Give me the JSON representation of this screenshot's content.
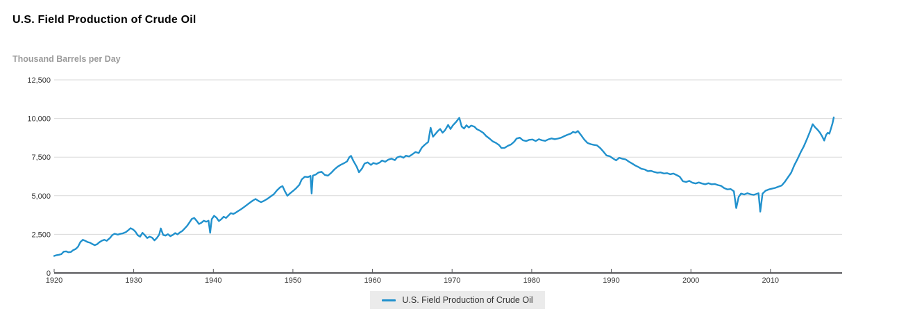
{
  "header": {
    "title": "U.S. Field Production of Crude Oil",
    "units_label": "Thousand Barrels per Day"
  },
  "legend": {
    "label": "U.S. Field Production of Crude Oil",
    "swatch_color": "#2191cd"
  },
  "colors": {
    "line": "#2191cd",
    "gridline": "#d9d9d9",
    "axis_line": "#58585b",
    "tick_label": "#333333",
    "subtitle_gray": "#9b9b9b",
    "legend_bg": "#ebebeb"
  },
  "chart_data": {
    "type": "line",
    "title": "U.S. Field Production of Crude Oil",
    "xlabel": "",
    "ylabel": "Thousand Barrels per Day",
    "series_name": "U.S. Field Production of Crude Oil",
    "line_color": "#2191cd",
    "grid": "horizontal",
    "legend_position": "bottom",
    "x_range": [
      1920,
      2019
    ],
    "ylim": [
      0,
      12500
    ],
    "x_ticks": [
      1920,
      1930,
      1940,
      1950,
      1960,
      1970,
      1980,
      1990,
      2000,
      2010
    ],
    "x_tick_labels": [
      "1920",
      "1930",
      "1940",
      "1950",
      "1960",
      "1970",
      "1980",
      "1990",
      "2000",
      "2010"
    ],
    "y_ticks": [
      0,
      2500,
      5000,
      7500,
      10000,
      12500
    ],
    "y_tick_labels": [
      "0",
      "2,500",
      "5,000",
      "7,500",
      "10,000",
      "12,500"
    ],
    "points": [
      [
        1920.0,
        1100
      ],
      [
        1920.3,
        1150
      ],
      [
        1920.6,
        1180
      ],
      [
        1920.9,
        1220
      ],
      [
        1921.2,
        1380
      ],
      [
        1921.5,
        1400
      ],
      [
        1921.8,
        1340
      ],
      [
        1922.1,
        1360
      ],
      [
        1922.4,
        1480
      ],
      [
        1922.7,
        1550
      ],
      [
        1923.0,
        1700
      ],
      [
        1923.3,
        2000
      ],
      [
        1923.6,
        2150
      ],
      [
        1923.9,
        2080
      ],
      [
        1924.2,
        2000
      ],
      [
        1924.5,
        1960
      ],
      [
        1924.8,
        1870
      ],
      [
        1925.1,
        1800
      ],
      [
        1925.4,
        1860
      ],
      [
        1925.7,
        1990
      ],
      [
        1926.0,
        2090
      ],
      [
        1926.3,
        2150
      ],
      [
        1926.6,
        2080
      ],
      [
        1927.0,
        2260
      ],
      [
        1927.3,
        2450
      ],
      [
        1927.6,
        2540
      ],
      [
        1928.0,
        2480
      ],
      [
        1928.3,
        2530
      ],
      [
        1928.6,
        2560
      ],
      [
        1929.0,
        2640
      ],
      [
        1929.3,
        2760
      ],
      [
        1929.6,
        2900
      ],
      [
        1929.9,
        2820
      ],
      [
        1930.2,
        2680
      ],
      [
        1930.5,
        2440
      ],
      [
        1930.8,
        2350
      ],
      [
        1931.1,
        2600
      ],
      [
        1931.4,
        2440
      ],
      [
        1931.7,
        2260
      ],
      [
        1932.0,
        2350
      ],
      [
        1932.3,
        2290
      ],
      [
        1932.6,
        2110
      ],
      [
        1932.9,
        2260
      ],
      [
        1933.2,
        2480
      ],
      [
        1933.4,
        2880
      ],
      [
        1933.7,
        2460
      ],
      [
        1934.0,
        2420
      ],
      [
        1934.3,
        2510
      ],
      [
        1934.6,
        2380
      ],
      [
        1934.9,
        2460
      ],
      [
        1935.2,
        2580
      ],
      [
        1935.5,
        2500
      ],
      [
        1935.8,
        2620
      ],
      [
        1936.1,
        2720
      ],
      [
        1936.4,
        2880
      ],
      [
        1936.7,
        3050
      ],
      [
        1937.0,
        3270
      ],
      [
        1937.3,
        3500
      ],
      [
        1937.6,
        3560
      ],
      [
        1937.9,
        3380
      ],
      [
        1938.2,
        3170
      ],
      [
        1938.5,
        3250
      ],
      [
        1938.8,
        3380
      ],
      [
        1939.1,
        3320
      ],
      [
        1939.4,
        3380
      ],
      [
        1939.6,
        2600
      ],
      [
        1939.8,
        3480
      ],
      [
        1940.1,
        3700
      ],
      [
        1940.4,
        3580
      ],
      [
        1940.7,
        3360
      ],
      [
        1941.0,
        3480
      ],
      [
        1941.3,
        3640
      ],
      [
        1941.6,
        3560
      ],
      [
        1941.9,
        3720
      ],
      [
        1942.2,
        3870
      ],
      [
        1942.5,
        3820
      ],
      [
        1942.8,
        3900
      ],
      [
        1943.1,
        4000
      ],
      [
        1943.5,
        4130
      ],
      [
        1943.9,
        4280
      ],
      [
        1944.3,
        4440
      ],
      [
        1944.7,
        4590
      ],
      [
        1945.0,
        4700
      ],
      [
        1945.3,
        4790
      ],
      [
        1945.7,
        4660
      ],
      [
        1946.0,
        4580
      ],
      [
        1946.4,
        4680
      ],
      [
        1946.8,
        4800
      ],
      [
        1947.2,
        4950
      ],
      [
        1947.6,
        5100
      ],
      [
        1948.0,
        5350
      ],
      [
        1948.4,
        5550
      ],
      [
        1948.7,
        5620
      ],
      [
        1949.0,
        5280
      ],
      [
        1949.3,
        5000
      ],
      [
        1949.7,
        5180
      ],
      [
        1950.0,
        5300
      ],
      [
        1950.4,
        5480
      ],
      [
        1950.8,
        5700
      ],
      [
        1951.1,
        6050
      ],
      [
        1951.5,
        6230
      ],
      [
        1951.9,
        6210
      ],
      [
        1952.2,
        6280
      ],
      [
        1952.35,
        5150
      ],
      [
        1952.5,
        6300
      ],
      [
        1952.9,
        6380
      ],
      [
        1953.2,
        6500
      ],
      [
        1953.6,
        6550
      ],
      [
        1954.0,
        6350
      ],
      [
        1954.4,
        6300
      ],
      [
        1954.8,
        6480
      ],
      [
        1955.2,
        6700
      ],
      [
        1955.6,
        6870
      ],
      [
        1956.0,
        7000
      ],
      [
        1956.4,
        7100
      ],
      [
        1956.8,
        7220
      ],
      [
        1957.1,
        7500
      ],
      [
        1957.3,
        7580
      ],
      [
        1957.6,
        7250
      ],
      [
        1958.0,
        6890
      ],
      [
        1958.3,
        6520
      ],
      [
        1958.7,
        6780
      ],
      [
        1959.0,
        7080
      ],
      [
        1959.4,
        7160
      ],
      [
        1959.8,
        6990
      ],
      [
        1960.1,
        7120
      ],
      [
        1960.5,
        7060
      ],
      [
        1960.9,
        7150
      ],
      [
        1961.2,
        7280
      ],
      [
        1961.6,
        7200
      ],
      [
        1962.0,
        7340
      ],
      [
        1962.4,
        7400
      ],
      [
        1962.8,
        7300
      ],
      [
        1963.1,
        7480
      ],
      [
        1963.5,
        7550
      ],
      [
        1963.9,
        7460
      ],
      [
        1964.2,
        7590
      ],
      [
        1964.6,
        7540
      ],
      [
        1965.0,
        7680
      ],
      [
        1965.4,
        7830
      ],
      [
        1965.8,
        7760
      ],
      [
        1966.2,
        8120
      ],
      [
        1966.6,
        8320
      ],
      [
        1967.0,
        8480
      ],
      [
        1967.3,
        9400
      ],
      [
        1967.6,
        8820
      ],
      [
        1967.9,
        9000
      ],
      [
        1968.2,
        9180
      ],
      [
        1968.5,
        9320
      ],
      [
        1968.8,
        9080
      ],
      [
        1969.1,
        9230
      ],
      [
        1969.5,
        9580
      ],
      [
        1969.8,
        9320
      ],
      [
        1970.1,
        9560
      ],
      [
        1970.5,
        9780
      ],
      [
        1970.9,
        10044
      ],
      [
        1971.2,
        9480
      ],
      [
        1971.5,
        9350
      ],
      [
        1971.8,
        9560
      ],
      [
        1972.1,
        9420
      ],
      [
        1972.4,
        9540
      ],
      [
        1972.8,
        9470
      ],
      [
        1973.1,
        9310
      ],
      [
        1973.5,
        9210
      ],
      [
        1973.9,
        9080
      ],
      [
        1974.3,
        8860
      ],
      [
        1974.7,
        8700
      ],
      [
        1975.1,
        8520
      ],
      [
        1975.5,
        8420
      ],
      [
        1975.9,
        8280
      ],
      [
        1976.2,
        8090
      ],
      [
        1976.6,
        8100
      ],
      [
        1977.0,
        8230
      ],
      [
        1977.4,
        8320
      ],
      [
        1977.8,
        8500
      ],
      [
        1978.1,
        8700
      ],
      [
        1978.5,
        8760
      ],
      [
        1978.9,
        8590
      ],
      [
        1979.3,
        8540
      ],
      [
        1979.7,
        8620
      ],
      [
        1980.1,
        8640
      ],
      [
        1980.5,
        8540
      ],
      [
        1980.9,
        8660
      ],
      [
        1981.3,
        8590
      ],
      [
        1981.7,
        8550
      ],
      [
        1982.1,
        8650
      ],
      [
        1982.5,
        8710
      ],
      [
        1982.9,
        8660
      ],
      [
        1983.3,
        8700
      ],
      [
        1983.7,
        8760
      ],
      [
        1984.1,
        8860
      ],
      [
        1984.5,
        8950
      ],
      [
        1984.9,
        9020
      ],
      [
        1985.2,
        9130
      ],
      [
        1985.5,
        9080
      ],
      [
        1985.8,
        9190
      ],
      [
        1986.2,
        8920
      ],
      [
        1986.6,
        8640
      ],
      [
        1987.0,
        8420
      ],
      [
        1987.4,
        8340
      ],
      [
        1987.8,
        8290
      ],
      [
        1988.2,
        8260
      ],
      [
        1988.6,
        8090
      ],
      [
        1989.0,
        7860
      ],
      [
        1989.4,
        7610
      ],
      [
        1989.8,
        7560
      ],
      [
        1990.2,
        7420
      ],
      [
        1990.6,
        7290
      ],
      [
        1991.0,
        7460
      ],
      [
        1991.4,
        7390
      ],
      [
        1991.8,
        7350
      ],
      [
        1992.2,
        7210
      ],
      [
        1992.6,
        7090
      ],
      [
        1993.0,
        6960
      ],
      [
        1993.4,
        6860
      ],
      [
        1993.8,
        6740
      ],
      [
        1994.2,
        6700
      ],
      [
        1994.6,
        6590
      ],
      [
        1995.0,
        6610
      ],
      [
        1995.4,
        6540
      ],
      [
        1995.8,
        6490
      ],
      [
        1996.2,
        6510
      ],
      [
        1996.6,
        6440
      ],
      [
        1997.0,
        6460
      ],
      [
        1997.4,
        6390
      ],
      [
        1997.8,
        6440
      ],
      [
        1998.2,
        6340
      ],
      [
        1998.6,
        6230
      ],
      [
        1999.0,
        5940
      ],
      [
        1999.4,
        5890
      ],
      [
        1999.8,
        5960
      ],
      [
        2000.2,
        5840
      ],
      [
        2000.6,
        5790
      ],
      [
        2001.0,
        5860
      ],
      [
        2001.4,
        5790
      ],
      [
        2001.8,
        5740
      ],
      [
        2002.2,
        5810
      ],
      [
        2002.6,
        5740
      ],
      [
        2003.0,
        5760
      ],
      [
        2003.4,
        5690
      ],
      [
        2003.8,
        5640
      ],
      [
        2004.2,
        5490
      ],
      [
        2004.6,
        5410
      ],
      [
        2005.0,
        5430
      ],
      [
        2005.4,
        5290
      ],
      [
        2005.7,
        4200
      ],
      [
        2006.0,
        4920
      ],
      [
        2006.3,
        5140
      ],
      [
        2006.7,
        5080
      ],
      [
        2007.1,
        5160
      ],
      [
        2007.5,
        5090
      ],
      [
        2007.9,
        5060
      ],
      [
        2008.2,
        5110
      ],
      [
        2008.5,
        5160
      ],
      [
        2008.72,
        3970
      ],
      [
        2009.0,
        5140
      ],
      [
        2009.4,
        5330
      ],
      [
        2009.8,
        5410
      ],
      [
        2010.2,
        5460
      ],
      [
        2010.6,
        5510
      ],
      [
        2011.0,
        5590
      ],
      [
        2011.4,
        5660
      ],
      [
        2011.8,
        5900
      ],
      [
        2012.2,
        6190
      ],
      [
        2012.6,
        6490
      ],
      [
        2013.0,
        6980
      ],
      [
        2013.4,
        7380
      ],
      [
        2013.8,
        7820
      ],
      [
        2014.2,
        8210
      ],
      [
        2014.6,
        8690
      ],
      [
        2015.0,
        9190
      ],
      [
        2015.3,
        9630
      ],
      [
        2015.6,
        9440
      ],
      [
        2015.9,
        9280
      ],
      [
        2016.2,
        9090
      ],
      [
        2016.5,
        8840
      ],
      [
        2016.75,
        8570
      ],
      [
        2017.0,
        8950
      ],
      [
        2017.2,
        9080
      ],
      [
        2017.4,
        9020
      ],
      [
        2017.6,
        9340
      ],
      [
        2017.8,
        9690
      ],
      [
        2017.95,
        10070
      ]
    ]
  }
}
